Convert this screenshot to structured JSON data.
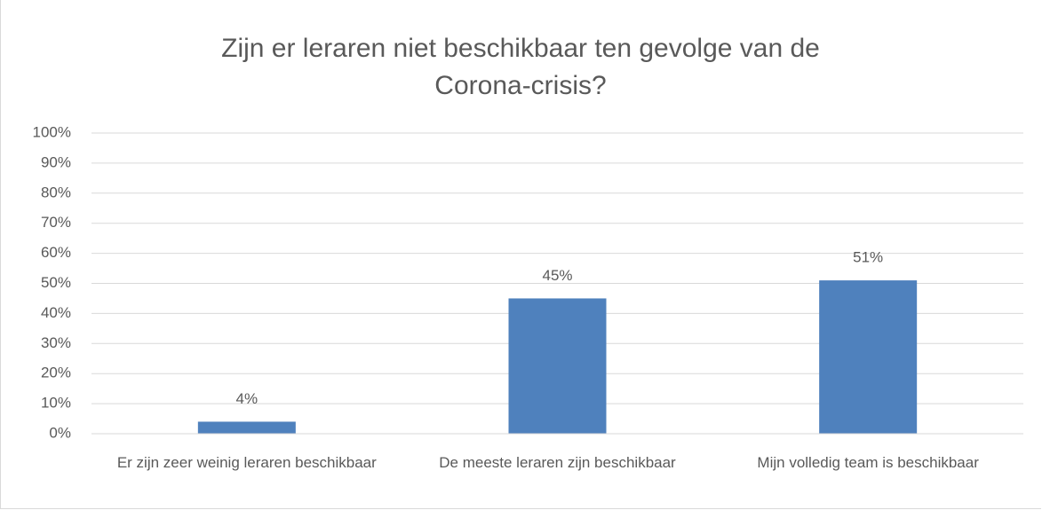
{
  "chart_data": {
    "type": "bar",
    "title": "Zijn er leraren niet beschikbaar ten gevolge van de Corona-crisis?",
    "categories": [
      "Er zijn zeer weinig leraren beschikbaar",
      "De meeste leraren zijn beschikbaar",
      "Mijn volledig team is beschikbaar"
    ],
    "values": [
      4,
      45,
      51
    ],
    "value_labels": [
      "4%",
      "45%",
      "51%"
    ],
    "color": "#4f81bd",
    "ylim": [
      0,
      100
    ],
    "yticks": [
      {
        "value": 0,
        "label": "0%"
      },
      {
        "value": 10,
        "label": "10%"
      },
      {
        "value": 20,
        "label": "20%"
      },
      {
        "value": 30,
        "label": "30%"
      },
      {
        "value": 40,
        "label": "40%"
      },
      {
        "value": 50,
        "label": "50%"
      },
      {
        "value": 60,
        "label": "60%"
      },
      {
        "value": 70,
        "label": "70%"
      },
      {
        "value": 80,
        "label": "80%"
      },
      {
        "value": 90,
        "label": "90%"
      },
      {
        "value": 100,
        "label": "100%"
      }
    ],
    "grid": true
  }
}
